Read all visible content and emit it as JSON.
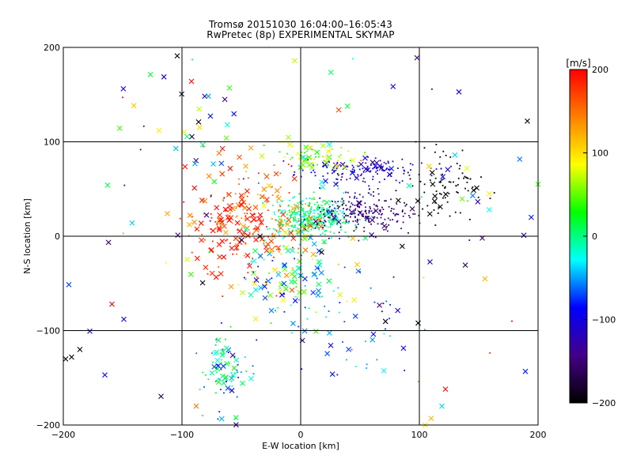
{
  "chart_data": {
    "type": "scatter",
    "title": "Tromsø 20151030 16:04:00–16:05:43",
    "subtitle": "RwPretec (8p) EXPERIMENTAL SKYMAP",
    "xlabel": "E-W location [km]",
    "ylabel": "N-S location [km]",
    "xlim": [
      -200,
      200
    ],
    "ylim": [
      -200,
      200
    ],
    "x_ticks": [
      -200,
      -100,
      0,
      100,
      200
    ],
    "y_ticks": [
      -200,
      -100,
      0,
      100,
      200
    ],
    "grid": true,
    "colorbar": {
      "label": "[m/s]",
      "range": [
        -200,
        200
      ],
      "ticks": [
        200,
        100,
        0,
        -100,
        -200
      ],
      "colormap": [
        "#000000",
        "#440088",
        "#0000ff",
        "#00ffff",
        "#00ff00",
        "#ffff00",
        "#ff8000",
        "#ff0000"
      ]
    },
    "markers": {
      "small": "dot",
      "large": "x"
    },
    "clusters": [
      {
        "x": 10,
        "y": 20,
        "sx": 18,
        "sy": 12,
        "v_mean": -5,
        "v_spread": 60,
        "n": 360,
        "large": 0.06
      },
      {
        "x": -35,
        "y": 20,
        "sx": 25,
        "sy": 25,
        "v_mean": 150,
        "v_spread": 70,
        "n": 160,
        "large": 0.35
      },
      {
        "x": 55,
        "y": 25,
        "sx": 22,
        "sy": 10,
        "v_mean": -150,
        "v_spread": 35,
        "n": 210,
        "large": 0.05
      },
      {
        "x": 120,
        "y": 50,
        "sx": 20,
        "sy": 18,
        "v_mean": -200,
        "v_spread": 8,
        "n": 90,
        "large": 0.08
      },
      {
        "x": 50,
        "y": 70,
        "sx": 28,
        "sy": 6,
        "v_mean": -110,
        "v_spread": 60,
        "n": 140,
        "large": 0.18
      },
      {
        "x": 10,
        "y": 85,
        "sx": 20,
        "sy": 8,
        "v_mean": 60,
        "v_spread": 90,
        "n": 80,
        "large": 0.25
      },
      {
        "x": -60,
        "y": 5,
        "sx": 18,
        "sy": 25,
        "v_mean": 190,
        "v_spread": 25,
        "n": 80,
        "large": 0.6
      },
      {
        "x": -10,
        "y": -40,
        "sx": 20,
        "sy": 28,
        "v_mean": 0,
        "v_spread": 200,
        "n": 120,
        "large": 0.55
      },
      {
        "x": -65,
        "y": -140,
        "sx": 10,
        "sy": 20,
        "v_mean": -30,
        "v_spread": 130,
        "n": 80,
        "large": 0.35
      },
      {
        "x": 45,
        "y": -110,
        "sx": 25,
        "sy": 30,
        "v_mean": -60,
        "v_spread": 80,
        "n": 40,
        "large": 0.3
      },
      {
        "x": 0,
        "y": 0,
        "sx": 110,
        "sy": 90,
        "v_mean": 0,
        "v_spread": 400,
        "n": 110,
        "large": 0.7
      },
      {
        "x": -90,
        "y": 100,
        "sx": 30,
        "sy": 30,
        "v_mean": 0,
        "v_spread": 400,
        "n": 30,
        "large": 0.8
      }
    ],
    "isolated_points": [
      {
        "x": -104,
        "y": 191,
        "v": -200,
        "m": "x"
      },
      {
        "x": 98,
        "y": 189,
        "v": -150,
        "m": "x"
      },
      {
        "x": -92,
        "y": 164,
        "v": 200,
        "m": "x"
      },
      {
        "x": -86,
        "y": 121,
        "v": -200,
        "m": "x"
      },
      {
        "x": 191,
        "y": 122,
        "v": -200,
        "m": "x"
      },
      {
        "x": -193,
        "y": -128,
        "v": -200,
        "m": "x"
      },
      {
        "x": -186,
        "y": -120,
        "v": -200,
        "m": "x"
      },
      {
        "x": -198,
        "y": -130,
        "v": -200,
        "m": "x"
      },
      {
        "x": -165,
        "y": -147,
        "v": -90,
        "m": "x"
      },
      {
        "x": -149,
        "y": -88,
        "v": -100,
        "m": "x"
      },
      {
        "x": -159,
        "y": -72,
        "v": 200,
        "m": "x"
      },
      {
        "x": -142,
        "y": 14,
        "v": -40,
        "m": "x"
      },
      {
        "x": 105,
        "y": -200,
        "v": 100,
        "m": "x"
      },
      {
        "x": 110,
        "y": -193,
        "v": 120,
        "m": "x"
      },
      {
        "x": 119,
        "y": -180,
        "v": -40,
        "m": "x"
      },
      {
        "x": 99,
        "y": -92,
        "v": -200,
        "m": "x"
      },
      {
        "x": 188,
        "y": 1,
        "v": -120,
        "m": "x"
      },
      {
        "x": 153,
        "y": -2,
        "v": -150,
        "m": "x"
      },
      {
        "x": 159,
        "y": 28,
        "v": -30,
        "m": "x"
      },
      {
        "x": 159,
        "y": 45,
        "v": 90,
        "m": "x"
      },
      {
        "x": 145,
        "y": 43,
        "v": -60,
        "m": "x"
      },
      {
        "x": -60,
        "y": 157,
        "v": 40,
        "m": "x"
      },
      {
        "x": -88,
        "y": -180,
        "v": 150,
        "m": "x"
      },
      {
        "x": 44,
        "y": 188,
        "v": -30,
        "m": "dot"
      },
      {
        "x": -150,
        "y": 147,
        "v": 200,
        "m": "dot"
      },
      {
        "x": -5,
        "y": 186,
        "v": 70,
        "m": "x"
      },
      {
        "x": 97,
        "y": 100,
        "v": -200,
        "m": "dot"
      },
      {
        "x": 130,
        "y": 86,
        "v": -40,
        "m": "x"
      },
      {
        "x": 140,
        "y": 72,
        "v": 80,
        "m": "x"
      },
      {
        "x": 178,
        "y": -90,
        "v": 200,
        "m": "dot"
      },
      {
        "x": 200,
        "y": 55,
        "v": 40,
        "m": "x"
      },
      {
        "x": 122,
        "y": -162,
        "v": 200,
        "m": "x"
      }
    ]
  }
}
